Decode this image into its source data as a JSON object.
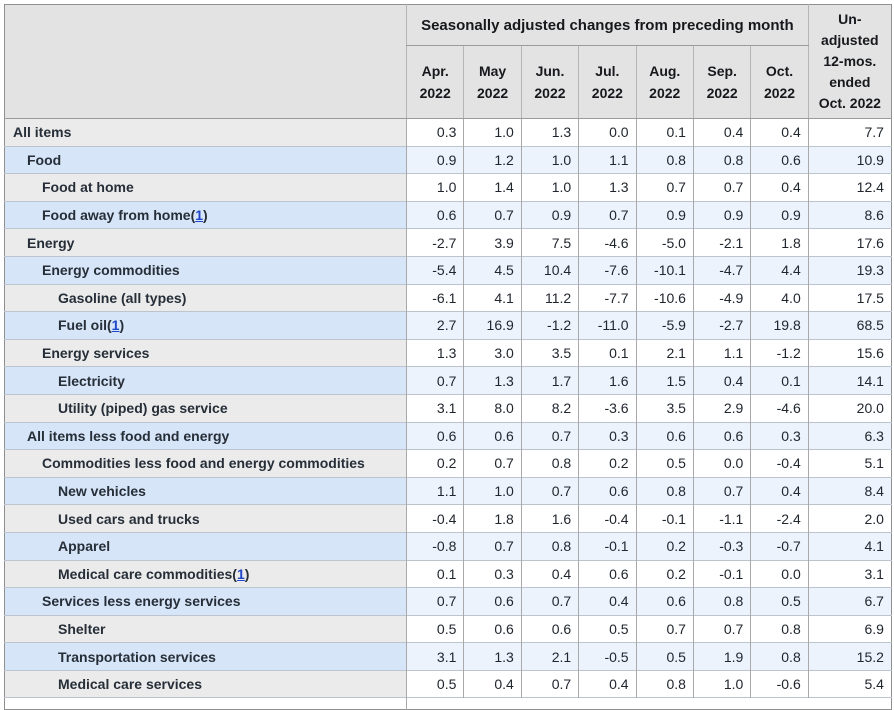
{
  "colors": {
    "header_bg": "#e3e3e3",
    "row_gray": "#ebebeb",
    "blue_label": "#d7e5f8",
    "blue_data": "#edf3fc",
    "border_v": "#a9a9a9",
    "border_h": "#bcc4cf",
    "border_outer": "#8f8f8f",
    "text": "#262e38",
    "link": "#1f45c8"
  },
  "chart_data": {
    "type": "table",
    "title": "Seasonally adjusted changes from preceding month",
    "unadjusted_header_lines": [
      "Un-",
      "adjusted",
      "12-mos.",
      "ended",
      "Oct. 2022"
    ],
    "month_columns": [
      "Apr. 2022",
      "May 2022",
      "Jun. 2022",
      "Jul. 2022",
      "Aug. 2022",
      "Sep. 2022",
      "Oct. 2022"
    ],
    "rows": [
      {
        "label": "All items",
        "indent": 0,
        "footnote": null,
        "values": [
          "0.3",
          "1.0",
          "1.3",
          "0.0",
          "0.1",
          "0.4",
          "0.4",
          "7.7"
        ]
      },
      {
        "label": "Food",
        "indent": 1,
        "footnote": null,
        "values": [
          "0.9",
          "1.2",
          "1.0",
          "1.1",
          "0.8",
          "0.8",
          "0.6",
          "10.9"
        ]
      },
      {
        "label": "Food at home",
        "indent": 2,
        "footnote": null,
        "values": [
          "1.0",
          "1.4",
          "1.0",
          "1.3",
          "0.7",
          "0.7",
          "0.4",
          "12.4"
        ]
      },
      {
        "label": "Food away from home",
        "indent": 2,
        "footnote": "1",
        "values": [
          "0.6",
          "0.7",
          "0.9",
          "0.7",
          "0.9",
          "0.9",
          "0.9",
          "8.6"
        ]
      },
      {
        "label": "Energy",
        "indent": 1,
        "footnote": null,
        "values": [
          "-2.7",
          "3.9",
          "7.5",
          "-4.6",
          "-5.0",
          "-2.1",
          "1.8",
          "17.6"
        ]
      },
      {
        "label": "Energy commodities",
        "indent": 2,
        "footnote": null,
        "values": [
          "-5.4",
          "4.5",
          "10.4",
          "-7.6",
          "-10.1",
          "-4.7",
          "4.4",
          "19.3"
        ]
      },
      {
        "label": "Gasoline (all types)",
        "indent": 3,
        "footnote": null,
        "values": [
          "-6.1",
          "4.1",
          "11.2",
          "-7.7",
          "-10.6",
          "-4.9",
          "4.0",
          "17.5"
        ]
      },
      {
        "label": "Fuel oil",
        "indent": 3,
        "footnote": "1",
        "values": [
          "2.7",
          "16.9",
          "-1.2",
          "-11.0",
          "-5.9",
          "-2.7",
          "19.8",
          "68.5"
        ]
      },
      {
        "label": "Energy services",
        "indent": 2,
        "footnote": null,
        "values": [
          "1.3",
          "3.0",
          "3.5",
          "0.1",
          "2.1",
          "1.1",
          "-1.2",
          "15.6"
        ]
      },
      {
        "label": "Electricity",
        "indent": 3,
        "footnote": null,
        "values": [
          "0.7",
          "1.3",
          "1.7",
          "1.6",
          "1.5",
          "0.4",
          "0.1",
          "14.1"
        ]
      },
      {
        "label": "Utility (piped) gas service",
        "indent": 3,
        "footnote": null,
        "values": [
          "3.1",
          "8.0",
          "8.2",
          "-3.6",
          "3.5",
          "2.9",
          "-4.6",
          "20.0"
        ]
      },
      {
        "label": "All items less food and energy",
        "indent": 1,
        "footnote": null,
        "values": [
          "0.6",
          "0.6",
          "0.7",
          "0.3",
          "0.6",
          "0.6",
          "0.3",
          "6.3"
        ]
      },
      {
        "label": "Commodities less food and energy commodities",
        "indent": 2,
        "footnote": null,
        "values": [
          "0.2",
          "0.7",
          "0.8",
          "0.2",
          "0.5",
          "0.0",
          "-0.4",
          "5.1"
        ]
      },
      {
        "label": "New vehicles",
        "indent": 3,
        "footnote": null,
        "values": [
          "1.1",
          "1.0",
          "0.7",
          "0.6",
          "0.8",
          "0.7",
          "0.4",
          "8.4"
        ]
      },
      {
        "label": "Used cars and trucks",
        "indent": 3,
        "footnote": null,
        "values": [
          "-0.4",
          "1.8",
          "1.6",
          "-0.4",
          "-0.1",
          "-1.1",
          "-2.4",
          "2.0"
        ]
      },
      {
        "label": "Apparel",
        "indent": 3,
        "footnote": null,
        "values": [
          "-0.8",
          "0.7",
          "0.8",
          "-0.1",
          "0.2",
          "-0.3",
          "-0.7",
          "4.1"
        ]
      },
      {
        "label": "Medical care commodities",
        "indent": 3,
        "footnote": "1",
        "values": [
          "0.1",
          "0.3",
          "0.4",
          "0.6",
          "0.2",
          "-0.1",
          "0.0",
          "3.1"
        ]
      },
      {
        "label": "Services less energy services",
        "indent": 2,
        "footnote": null,
        "values": [
          "0.7",
          "0.6",
          "0.7",
          "0.4",
          "0.6",
          "0.8",
          "0.5",
          "6.7"
        ]
      },
      {
        "label": "Shelter",
        "indent": 3,
        "footnote": null,
        "values": [
          "0.5",
          "0.6",
          "0.6",
          "0.5",
          "0.7",
          "0.7",
          "0.8",
          "6.9"
        ]
      },
      {
        "label": "Transportation services",
        "indent": 3,
        "footnote": null,
        "values": [
          "3.1",
          "1.3",
          "2.1",
          "-0.5",
          "0.5",
          "1.9",
          "0.8",
          "15.2"
        ]
      },
      {
        "label": "Medical care services",
        "indent": 3,
        "footnote": null,
        "values": [
          "0.5",
          "0.4",
          "0.7",
          "0.4",
          "0.8",
          "1.0",
          "-0.6",
          "5.4"
        ]
      }
    ]
  }
}
